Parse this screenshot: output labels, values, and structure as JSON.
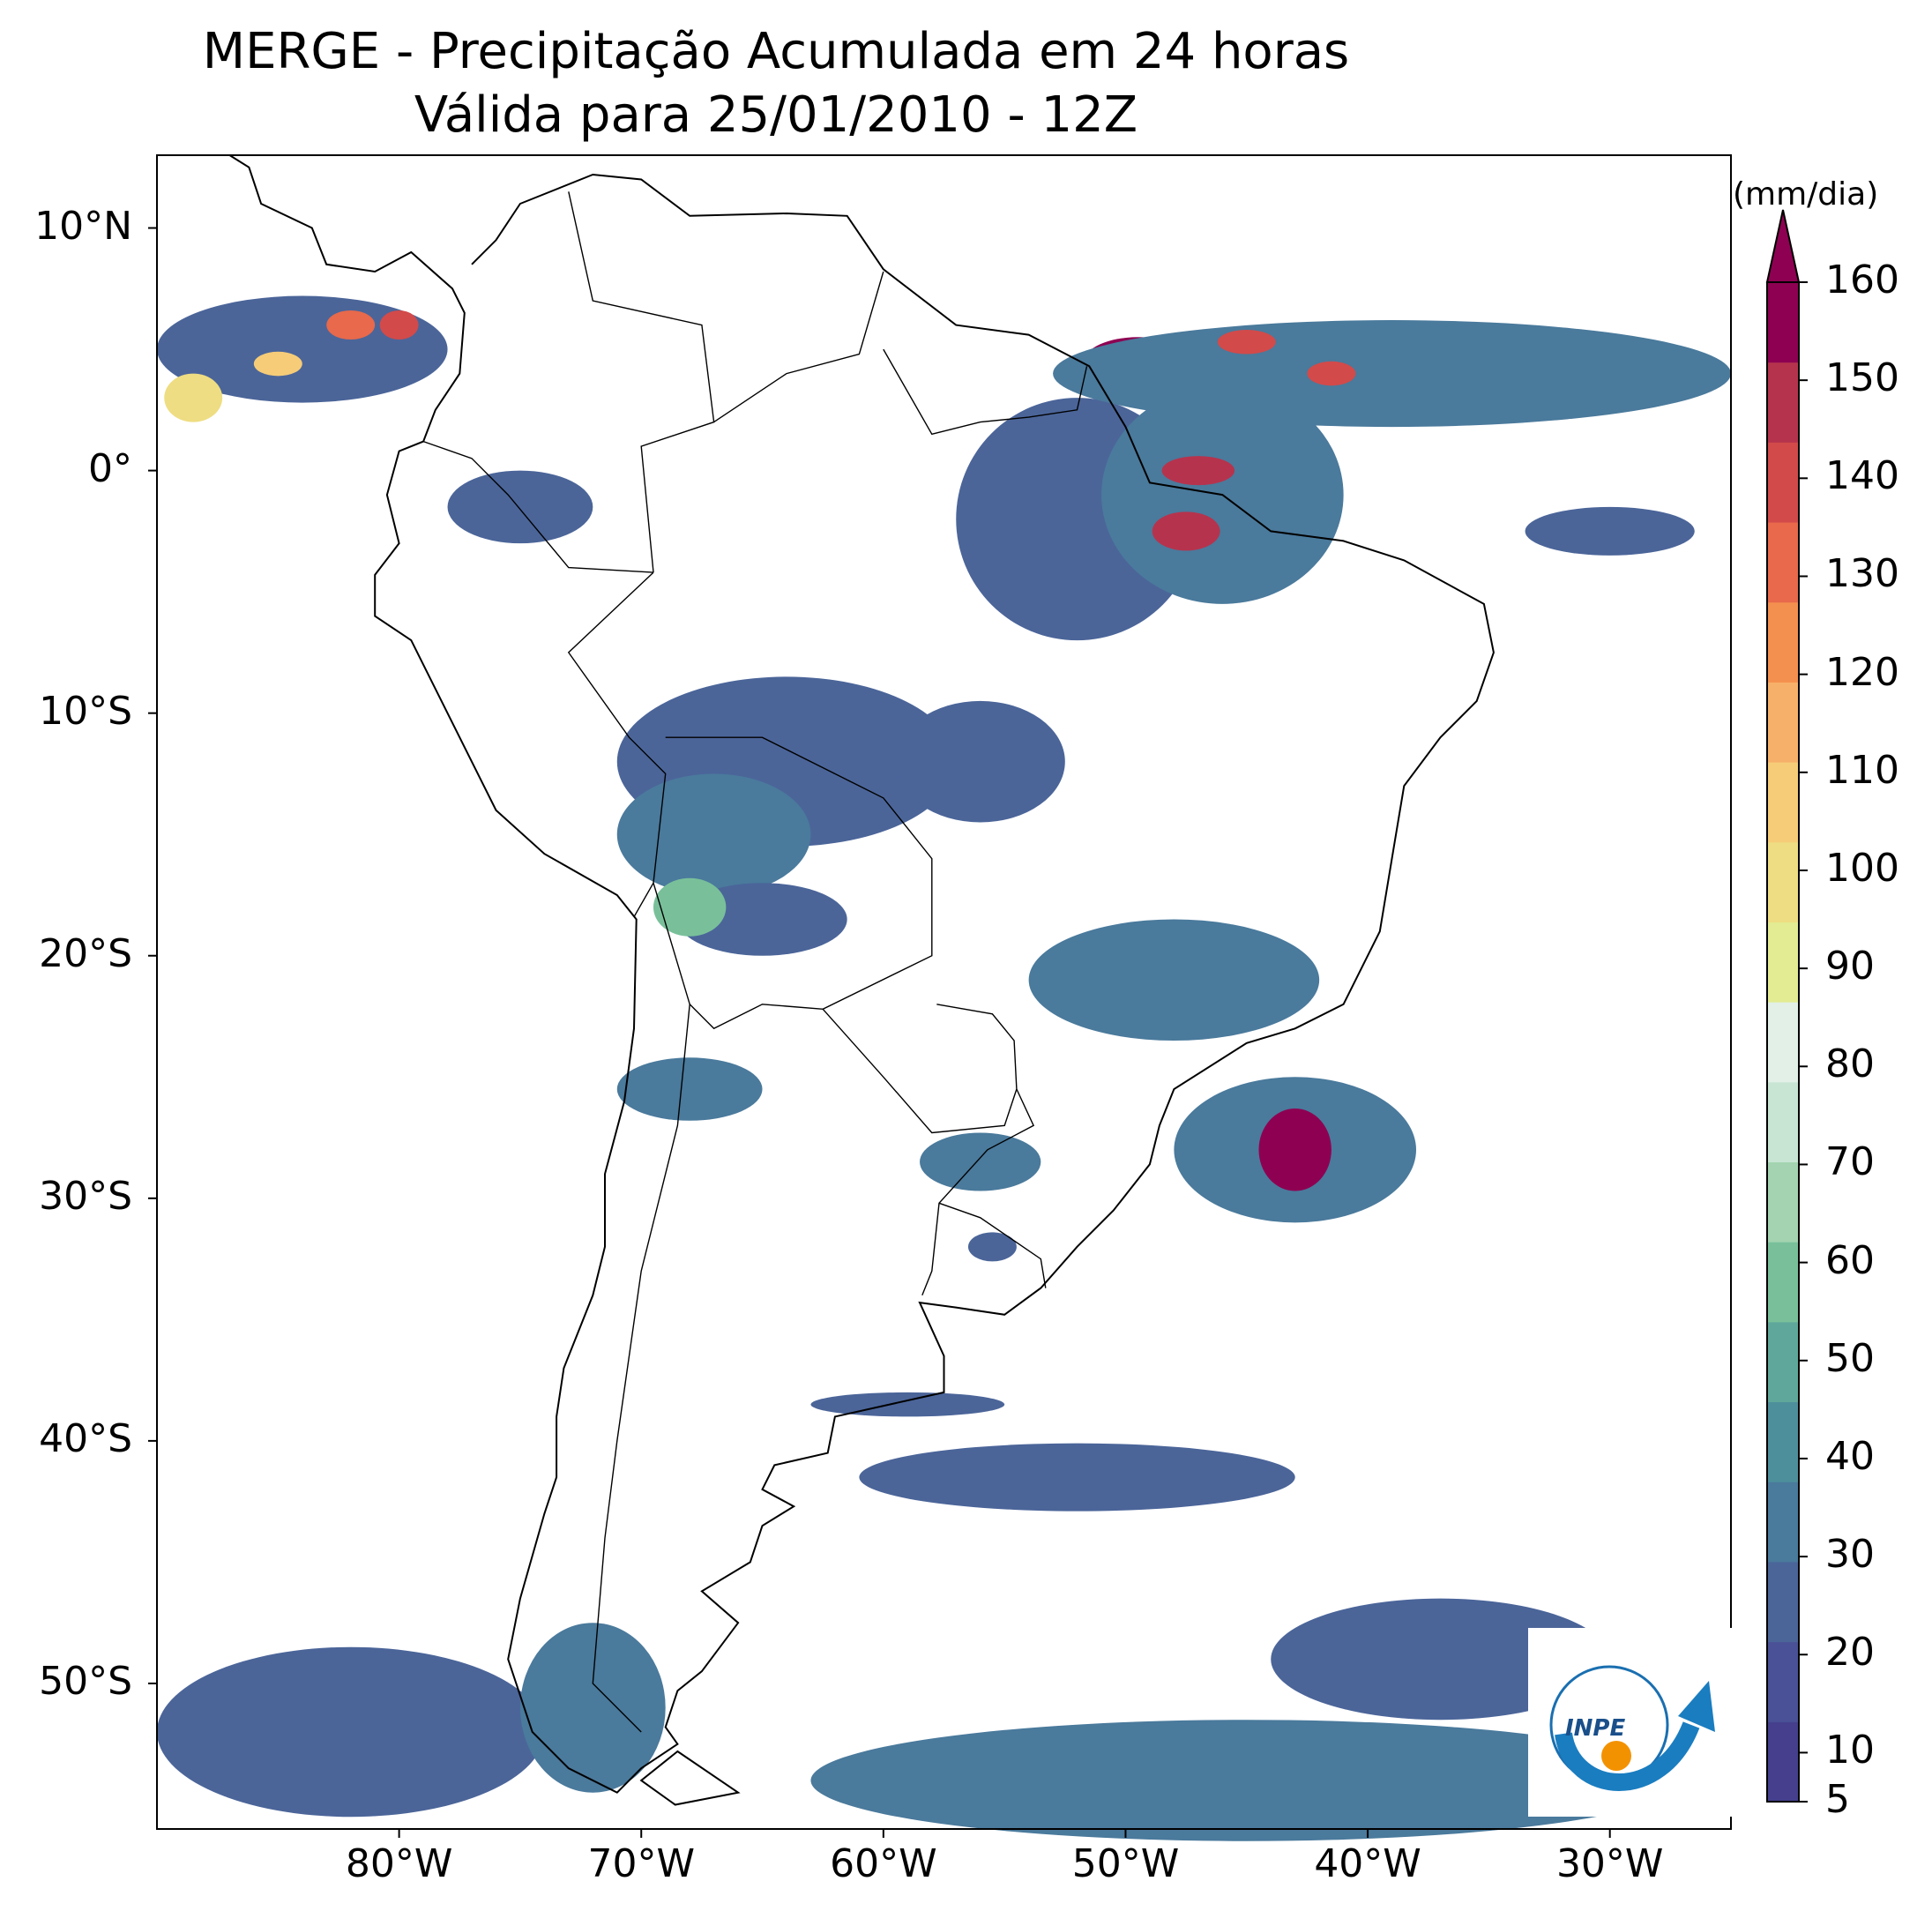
{
  "title": "MERGE - Precipitação Acumulada em 24 horas",
  "subtitle": "Válida para 25/01/2010 - 12Z",
  "lat_labels": [
    {
      "text": "10°N",
      "lat": 10
    },
    {
      "text": "0°",
      "lat": 0
    },
    {
      "text": "10°S",
      "lat": -10
    },
    {
      "text": "20°S",
      "lat": -20
    },
    {
      "text": "30°S",
      "lat": -30
    },
    {
      "text": "40°S",
      "lat": -40
    },
    {
      "text": "50°S",
      "lat": -50
    }
  ],
  "lon_labels": [
    {
      "text": "80°W",
      "lon": -80
    },
    {
      "text": "70°W",
      "lon": -70
    },
    {
      "text": "60°W",
      "lon": -60
    },
    {
      "text": "50°W",
      "lon": -50
    },
    {
      "text": "40°W",
      "lon": -40
    },
    {
      "text": "30°W",
      "lon": -30
    }
  ],
  "extent": {
    "lon_min": -90,
    "lon_max": -25,
    "lat_min": -56,
    "lat_max": 13
  },
  "colorbar": {
    "unit": "(mm/dia)",
    "ticks": [
      "5",
      "10",
      "20",
      "30",
      "40",
      "50",
      "60",
      "70",
      "80",
      "90",
      "100",
      "110",
      "120",
      "130",
      "140",
      "150",
      "160"
    ],
    "colors": [
      "#453f8d",
      "#4a5196",
      "#4b6599",
      "#4a7a9c",
      "#4e8f9c",
      "#5fa79a",
      "#79c09a",
      "#a3d3b0",
      "#c8e5d4",
      "#e2f0e8",
      "#e3ec92",
      "#eedd82",
      "#f6cc78",
      "#f7b06a",
      "#f4904f",
      "#e8694b",
      "#d24a4a",
      "#b6334d",
      "#8e0152"
    ],
    "extend_color": "#8e0152"
  },
  "logo": {
    "text": "INPE"
  },
  "precip_cells": [
    {
      "lon": -84,
      "lat": 5,
      "rx": 6,
      "ry": 2.2,
      "level": 2
    },
    {
      "lon": -85,
      "lat": 4.4,
      "rx": 1,
      "ry": 0.5,
      "level": 12
    },
    {
      "lon": -88.5,
      "lat": 3,
      "rx": 1.2,
      "ry": 1,
      "level": 11
    },
    {
      "lon": -82,
      "lat": 6,
      "rx": 1,
      "ry": 0.6,
      "level": 15
    },
    {
      "lon": -80,
      "lat": 6,
      "rx": 0.8,
      "ry": 0.6,
      "level": 16
    },
    {
      "lon": -75,
      "lat": -1.5,
      "rx": 3,
      "ry": 1.5,
      "level": 2
    },
    {
      "lon": -52,
      "lat": -2,
      "rx": 5,
      "ry": 5,
      "level": 2
    },
    {
      "lon": -46,
      "lat": -1,
      "rx": 5,
      "ry": 4.5,
      "level": 3
    },
    {
      "lon": -49.5,
      "lat": 4.5,
      "rx": 2.2,
      "ry": 1,
      "level": 18
    },
    {
      "lon": -47,
      "lat": 0,
      "rx": 1.5,
      "ry": 0.6,
      "level": 17
    },
    {
      "lon": -47.5,
      "lat": -2.5,
      "rx": 1.4,
      "ry": 0.8,
      "level": 17
    },
    {
      "lon": -39,
      "lat": 4,
      "rx": 14,
      "ry": 2.2,
      "level": 3
    },
    {
      "lon": -45,
      "lat": 5.3,
      "rx": 1.2,
      "ry": 0.5,
      "level": 16
    },
    {
      "lon": -41.5,
      "lat": 4,
      "rx": 1,
      "ry": 0.5,
      "level": 16
    },
    {
      "lon": -30,
      "lat": -2.5,
      "rx": 3.5,
      "ry": 1,
      "level": 2
    },
    {
      "lon": -64,
      "lat": -12,
      "rx": 7,
      "ry": 3.5,
      "level": 2
    },
    {
      "lon": -67,
      "lat": -15,
      "rx": 4,
      "ry": 2.5,
      "level": 3
    },
    {
      "lon": -56,
      "lat": -12,
      "rx": 3.5,
      "ry": 2.5,
      "level": 2
    },
    {
      "lon": -48,
      "lat": -21,
      "rx": 6,
      "ry": 2.5,
      "level": 3
    },
    {
      "lon": -65,
      "lat": -18.5,
      "rx": 3.5,
      "ry": 1.5,
      "level": 2
    },
    {
      "lon": -68,
      "lat": -18,
      "rx": 1.5,
      "ry": 1.2,
      "level": 6
    },
    {
      "lon": -68,
      "lat": -25.5,
      "rx": 3,
      "ry": 1.3,
      "level": 3
    },
    {
      "lon": -43,
      "lat": -28,
      "rx": 5,
      "ry": 3,
      "level": 3
    },
    {
      "lon": -43,
      "lat": -28,
      "rx": 1.5,
      "ry": 1.7,
      "level": 18
    },
    {
      "lon": -56,
      "lat": -28.5,
      "rx": 2.5,
      "ry": 1.2,
      "level": 3
    },
    {
      "lon": -55.5,
      "lat": -32,
      "rx": 1,
      "ry": 0.6,
      "level": 2
    },
    {
      "lon": -59,
      "lat": -38.5,
      "rx": 4,
      "ry": 0.5,
      "level": 2
    },
    {
      "lon": -52,
      "lat": -41.5,
      "rx": 9,
      "ry": 1.4,
      "level": 2
    },
    {
      "lon": -82,
      "lat": -52,
      "rx": 8,
      "ry": 3.5,
      "level": 2
    },
    {
      "lon": -72,
      "lat": -51,
      "rx": 3,
      "ry": 3.5,
      "level": 3
    },
    {
      "lon": -45,
      "lat": -54,
      "rx": 18,
      "ry": 2.5,
      "level": 3
    },
    {
      "lon": -37,
      "lat": -49,
      "rx": 7,
      "ry": 2.5,
      "level": 2
    }
  ]
}
